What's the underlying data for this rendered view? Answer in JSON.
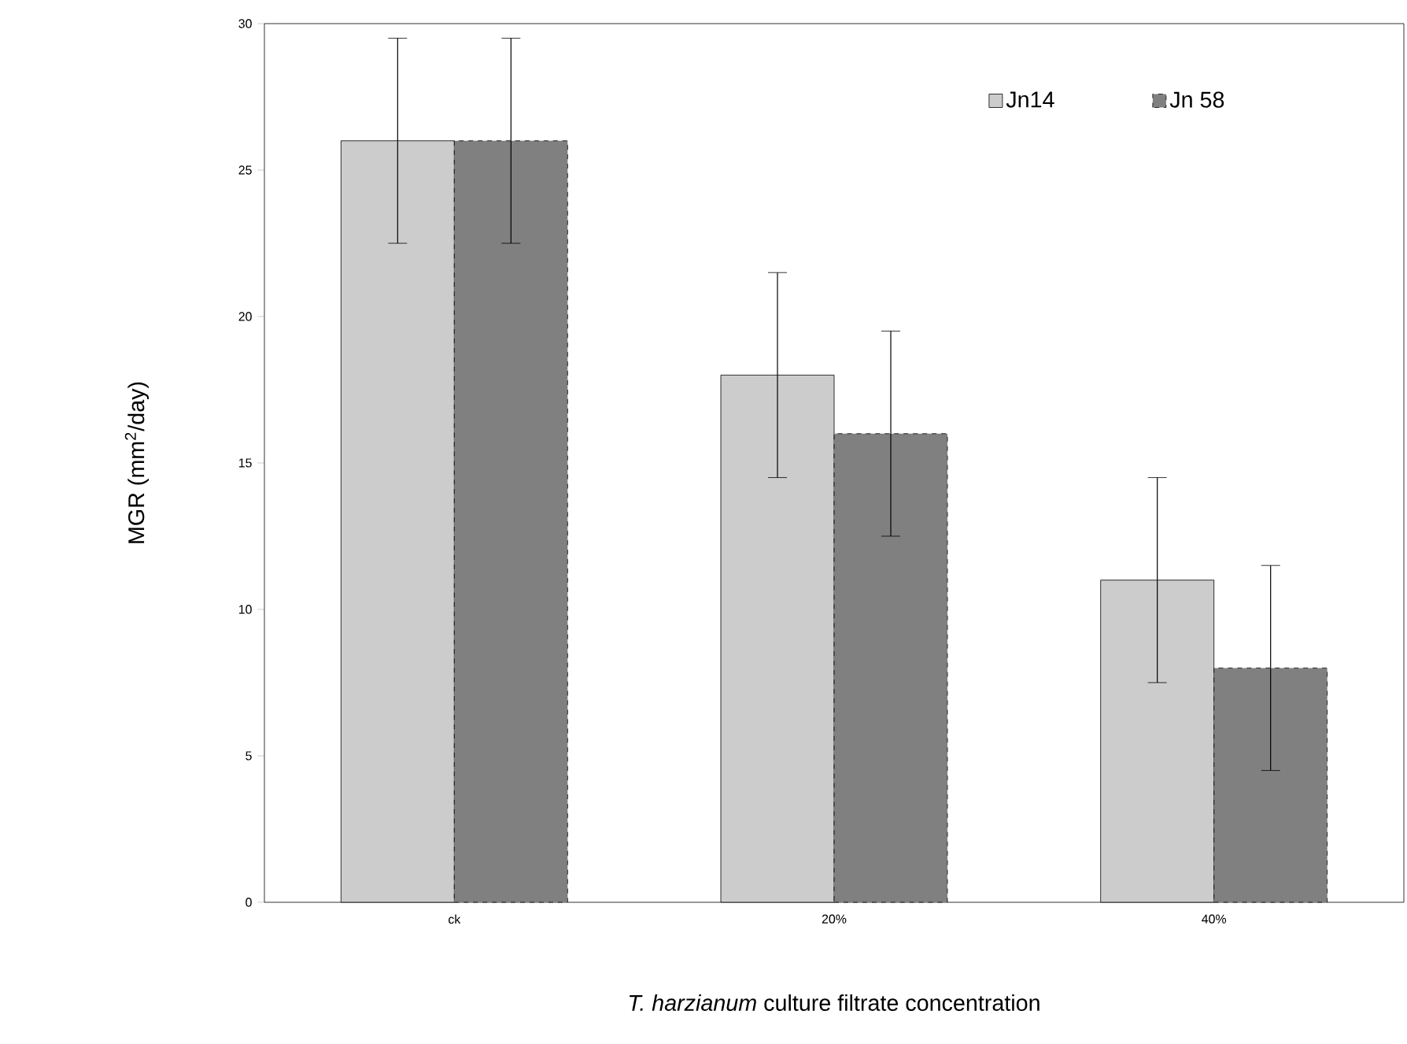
{
  "chart_data": {
    "type": "bar",
    "xlabel": "*T. harzianum* culture filtrate concentration",
    "ylabel": "MGR (mm$^{2}$/day)",
    "categories": [
      "ck",
      "20%",
      "40%"
    ],
    "series": [
      {
        "name": "Jn14",
        "color": "#cccccc",
        "values": [
          26,
          18,
          11
        ],
        "errors": [
          3.5,
          3.5,
          3.5
        ]
      },
      {
        "name": "Jn 58",
        "color": "#808080",
        "values": [
          26,
          16,
          8
        ],
        "errors": [
          3.5,
          3.5,
          3.5
        ]
      }
    ],
    "ylim": [
      0,
      30
    ],
    "yticks": [
      0,
      5,
      10,
      15,
      20,
      25,
      30
    ],
    "grid": false,
    "legend": "top right"
  }
}
